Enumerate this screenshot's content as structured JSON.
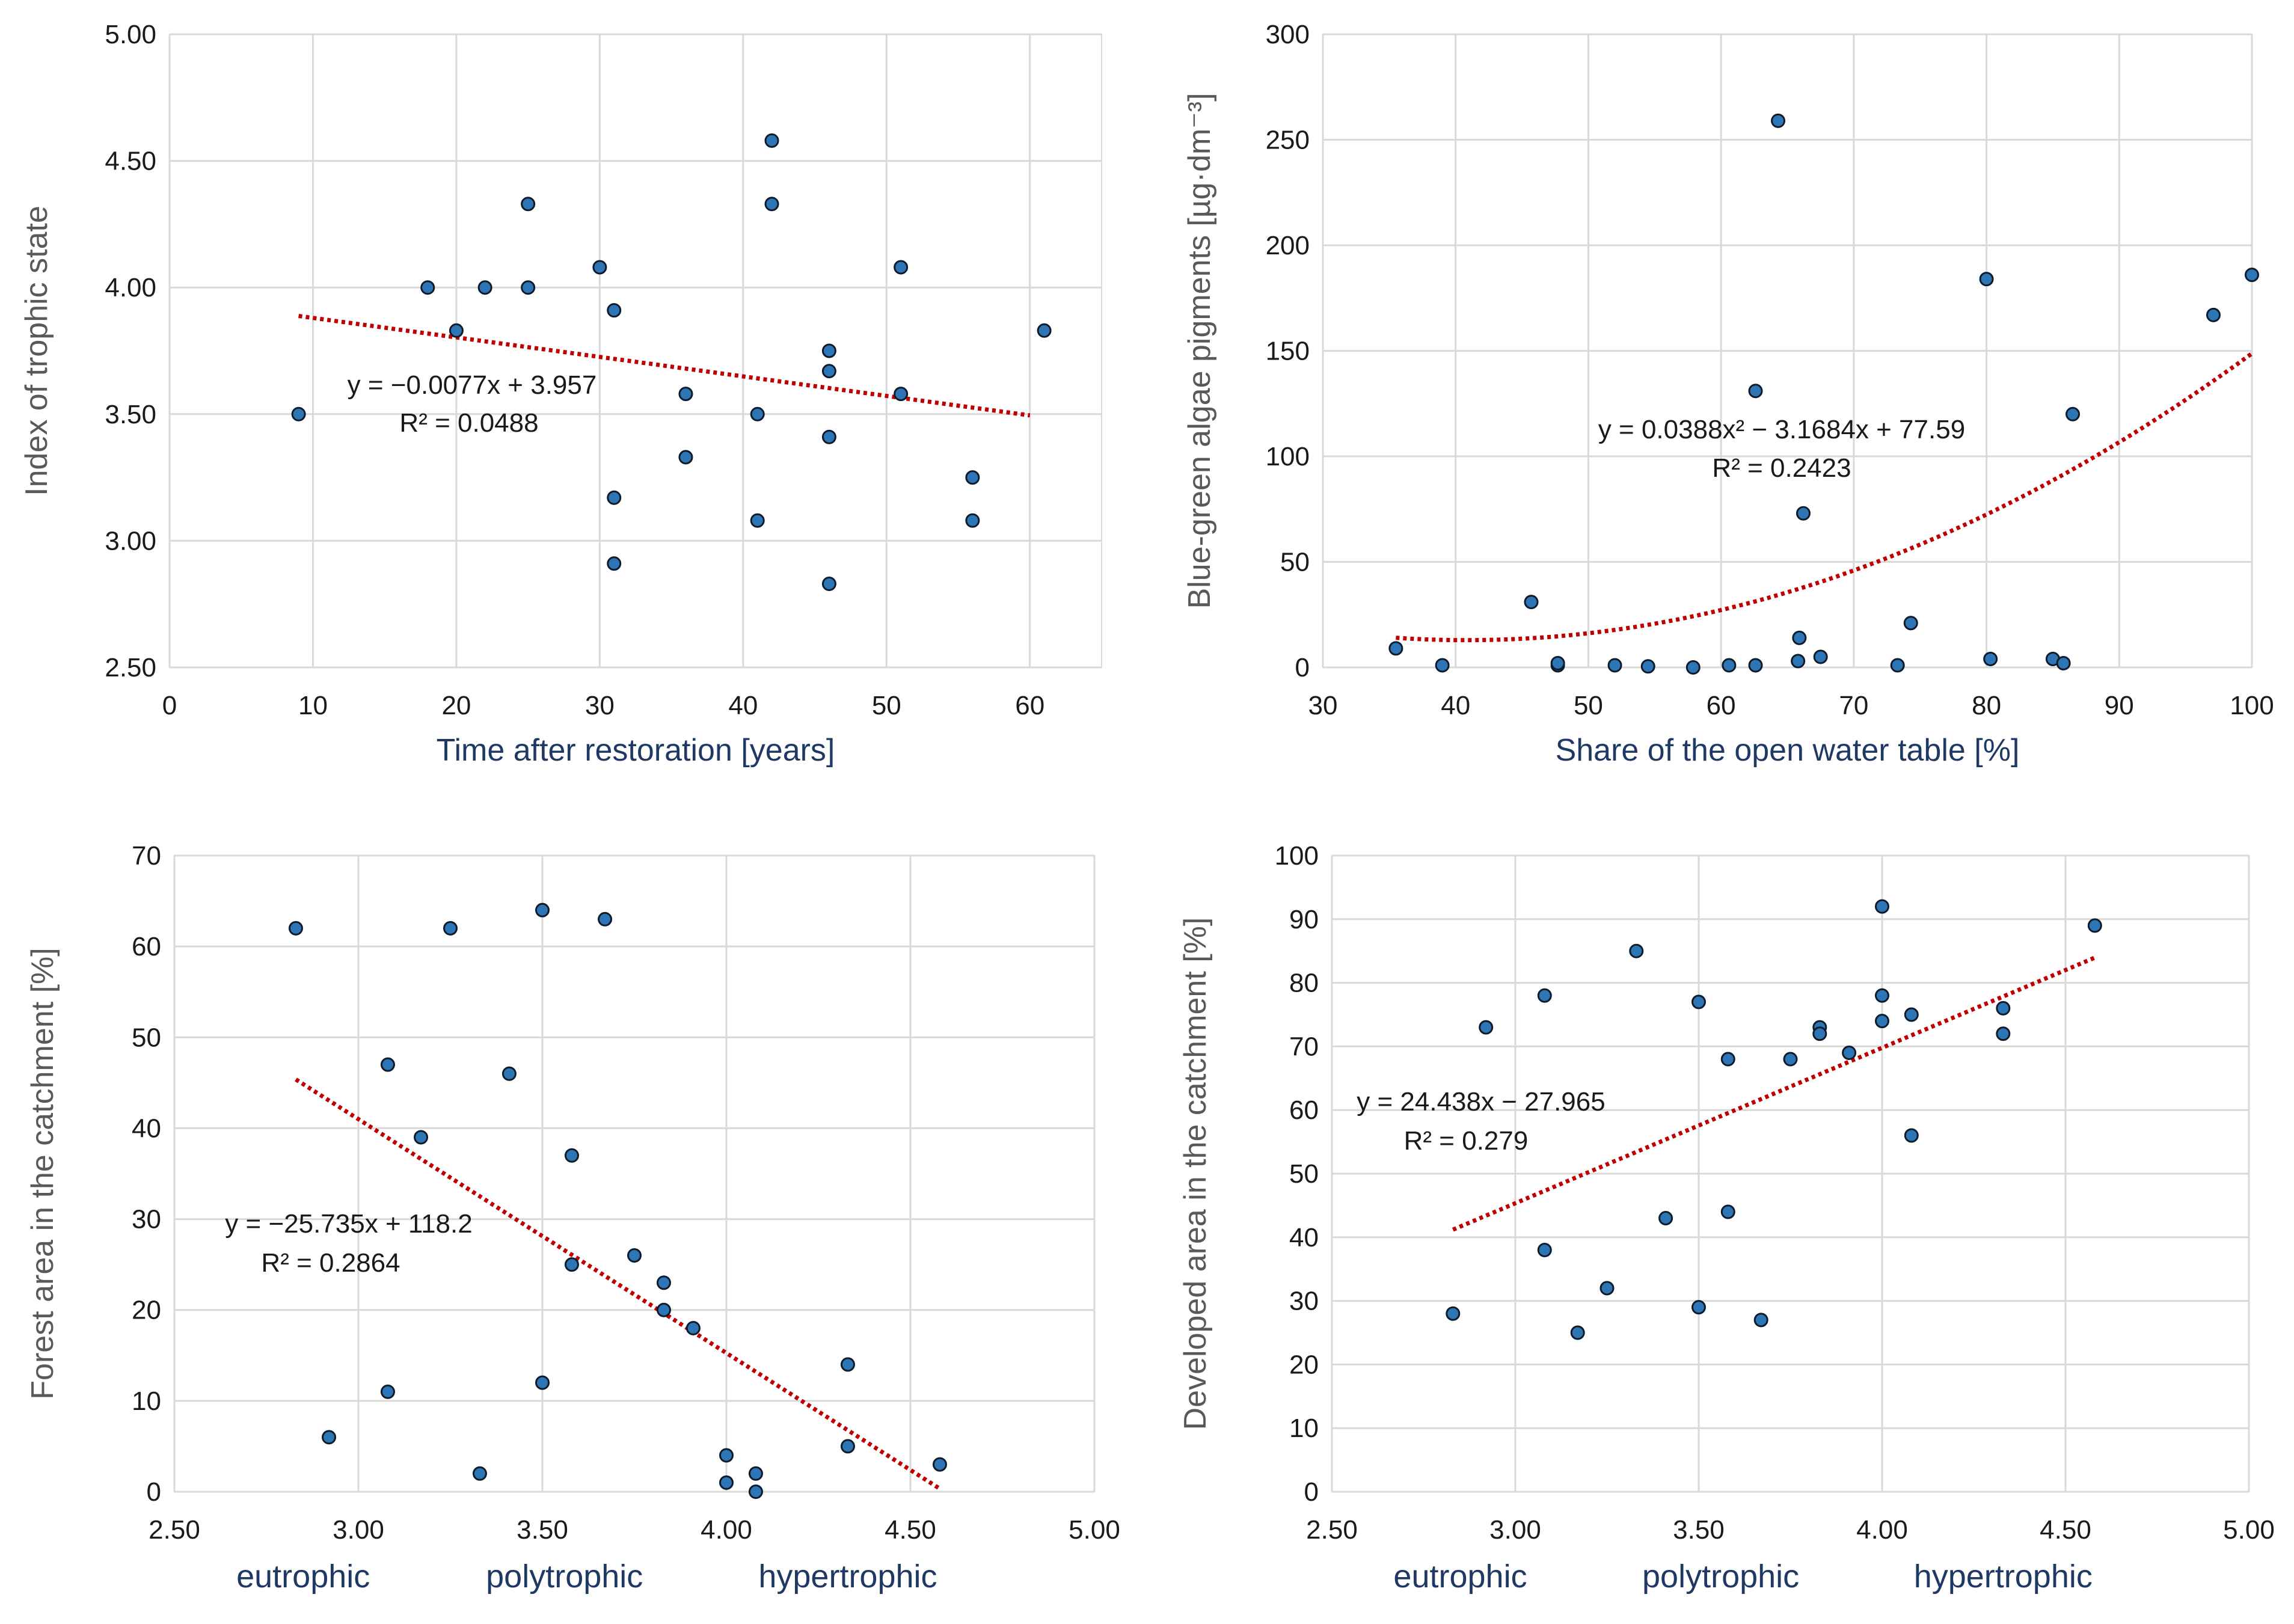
{
  "chart_data": [
    {
      "type": "scatter",
      "xlabel": "Time after restoration [years]",
      "ylabel": "Index of trophic state",
      "xlim": [
        0,
        65
      ],
      "ylim": [
        2.5,
        5.0
      ],
      "xticks": [
        0,
        10,
        20,
        30,
        40,
        50,
        60
      ],
      "xtick_labels": [
        "0",
        "10",
        "20",
        "30",
        "40",
        "50",
        "60"
      ],
      "yticks": [
        2.5,
        3.0,
        3.5,
        4.0,
        4.5,
        5.0
      ],
      "ytick_labels": [
        "2.50",
        "3.00",
        "3.50",
        "4.00",
        "4.50",
        "5.00"
      ],
      "points": [
        [
          9,
          3.5
        ],
        [
          18,
          4.0
        ],
        [
          20,
          3.83
        ],
        [
          22,
          4.0
        ],
        [
          25,
          4.33
        ],
        [
          25,
          4.0
        ],
        [
          30,
          4.08
        ],
        [
          31,
          3.91
        ],
        [
          31,
          3.17
        ],
        [
          31,
          2.91
        ],
        [
          36,
          3.58
        ],
        [
          36,
          3.33
        ],
        [
          41,
          3.5
        ],
        [
          41,
          3.08
        ],
        [
          42,
          4.58
        ],
        [
          42,
          4.33
        ],
        [
          46,
          3.75
        ],
        [
          46,
          3.67
        ],
        [
          46,
          3.41
        ],
        [
          46,
          2.83
        ],
        [
          51,
          4.08
        ],
        [
          51,
          3.58
        ],
        [
          56,
          3.25
        ],
        [
          56,
          3.08
        ],
        [
          61,
          3.83
        ]
      ],
      "trend": {
        "kind": "linear",
        "coef": [
          -0.0077,
          3.957
        ],
        "x_range": [
          9,
          60
        ]
      },
      "equation": "y = −0.0077x + 3.957",
      "r2": "R² = 0.0488",
      "categories": []
    },
    {
      "type": "scatter",
      "xlabel": "Share of the open water table [%]",
      "ylabel": "Blue-green algae pigments [µg·dm⁻³]",
      "xlim": [
        30,
        100
      ],
      "ylim": [
        0,
        300
      ],
      "xticks": [
        30,
        40,
        50,
        60,
        70,
        80,
        90,
        100
      ],
      "xtick_labels": [
        "30",
        "40",
        "50",
        "60",
        "70",
        "80",
        "90",
        "100"
      ],
      "yticks": [
        0,
        50,
        100,
        150,
        200,
        250,
        300
      ],
      "ytick_labels": [
        "0",
        "50",
        "100",
        "150",
        "200",
        "250",
        "300"
      ],
      "points": [
        [
          35.5,
          9
        ],
        [
          39,
          1
        ],
        [
          45.7,
          31
        ],
        [
          47.7,
          1
        ],
        [
          47.7,
          2
        ],
        [
          52,
          1
        ],
        [
          54.5,
          0.5
        ],
        [
          57.9,
          0
        ],
        [
          60.6,
          1
        ],
        [
          62.6,
          1
        ],
        [
          62.6,
          131
        ],
        [
          64.3,
          259
        ],
        [
          65.8,
          3
        ],
        [
          65.9,
          14
        ],
        [
          66.2,
          73
        ],
        [
          67.5,
          5
        ],
        [
          73.3,
          1
        ],
        [
          74.3,
          21
        ],
        [
          80,
          184
        ],
        [
          80.3,
          4
        ],
        [
          85,
          4
        ],
        [
          85.8,
          2
        ],
        [
          86.5,
          120
        ],
        [
          97.1,
          167
        ],
        [
          100,
          186
        ]
      ],
      "trend": {
        "kind": "poly2",
        "coef": [
          0.0388,
          -3.1684,
          77.59
        ],
        "x_range": [
          35.5,
          100
        ]
      },
      "equation": "y = 0.0388x² − 3.1684x + 77.59",
      "r2": "R² = 0.2423",
      "categories": []
    },
    {
      "type": "scatter",
      "xlabel": "",
      "ylabel": "Forest area in the catchment [%]",
      "xlim": [
        2.5,
        5.0
      ],
      "ylim": [
        0,
        70
      ],
      "xticks": [
        2.5,
        3.0,
        3.5,
        4.0,
        4.5,
        5.0
      ],
      "xtick_labels": [
        "2.50",
        "3.00",
        "3.50",
        "4.00",
        "4.50",
        "5.00"
      ],
      "yticks": [
        0,
        10,
        20,
        30,
        40,
        50,
        60,
        70
      ],
      "ytick_labels": [
        "0",
        "10",
        "20",
        "30",
        "40",
        "50",
        "60",
        "70"
      ],
      "points": [
        [
          2.83,
          62
        ],
        [
          2.92,
          6
        ],
        [
          3.08,
          47
        ],
        [
          3.08,
          11
        ],
        [
          3.17,
          39
        ],
        [
          3.25,
          62
        ],
        [
          3.33,
          2
        ],
        [
          3.41,
          46
        ],
        [
          3.5,
          64
        ],
        [
          3.5,
          12
        ],
        [
          3.58,
          37
        ],
        [
          3.58,
          25
        ],
        [
          3.67,
          63
        ],
        [
          3.75,
          26
        ],
        [
          3.83,
          23
        ],
        [
          3.83,
          20
        ],
        [
          3.91,
          18
        ],
        [
          4.0,
          4
        ],
        [
          4.0,
          1
        ],
        [
          4.08,
          2
        ],
        [
          4.08,
          0
        ],
        [
          4.33,
          14
        ],
        [
          4.33,
          5
        ],
        [
          4.58,
          3
        ]
      ],
      "trend": {
        "kind": "linear",
        "coef": [
          -25.735,
          118.2
        ],
        "x_range": [
          2.83,
          4.58
        ]
      },
      "equation": "y = −25.735x + 118.2",
      "r2": "R² = 0.2864",
      "categories": [
        {
          "label": "eutrophic",
          "at": 2.85
        },
        {
          "label": "polytrophic",
          "at": 3.56
        },
        {
          "label": "hypertrophic",
          "at": 4.33
        }
      ]
    },
    {
      "type": "scatter",
      "xlabel": "",
      "ylabel": "Developed  area in the catchment [%]",
      "xlim": [
        2.5,
        5.0
      ],
      "ylim": [
        0,
        100
      ],
      "xticks": [
        2.5,
        3.0,
        3.5,
        4.0,
        4.5,
        5.0
      ],
      "xtick_labels": [
        "2.50",
        "3.00",
        "3.50",
        "4.00",
        "4.50",
        "5.00"
      ],
      "yticks": [
        0,
        10,
        20,
        30,
        40,
        50,
        60,
        70,
        80,
        90,
        100
      ],
      "ytick_labels": [
        "0",
        "10",
        "20",
        "30",
        "40",
        "50",
        "60",
        "70",
        "80",
        "90",
        "100"
      ],
      "points": [
        [
          2.83,
          28
        ],
        [
          2.92,
          73
        ],
        [
          3.08,
          78
        ],
        [
          3.08,
          38
        ],
        [
          3.17,
          25
        ],
        [
          3.25,
          32
        ],
        [
          3.33,
          85
        ],
        [
          3.41,
          43
        ],
        [
          3.5,
          77
        ],
        [
          3.5,
          29
        ],
        [
          3.58,
          68
        ],
        [
          3.58,
          44
        ],
        [
          3.67,
          27
        ],
        [
          3.75,
          68
        ],
        [
          3.83,
          73
        ],
        [
          3.83,
          72
        ],
        [
          3.91,
          69
        ],
        [
          4.0,
          92
        ],
        [
          4.0,
          78
        ],
        [
          4.0,
          74
        ],
        [
          4.08,
          75
        ],
        [
          4.08,
          56
        ],
        [
          4.33,
          76
        ],
        [
          4.33,
          72
        ],
        [
          4.58,
          89
        ]
      ],
      "trend": {
        "kind": "linear",
        "coef": [
          24.438,
          -27.965
        ],
        "x_range": [
          2.83,
          4.58
        ]
      },
      "equation": "y = 24.438x − 27.965",
      "r2": "R² = 0.279",
      "categories": [
        {
          "label": "eutrophic",
          "at": 2.85
        },
        {
          "label": "polytrophic",
          "at": 3.56
        },
        {
          "label": "hypertrophic",
          "at": 4.33
        }
      ]
    }
  ],
  "colors": {
    "marker_fill": "#2e75b6",
    "marker_edge": "#0d1b2a",
    "trend": "#c00000",
    "grid": "#d9d9d9"
  }
}
